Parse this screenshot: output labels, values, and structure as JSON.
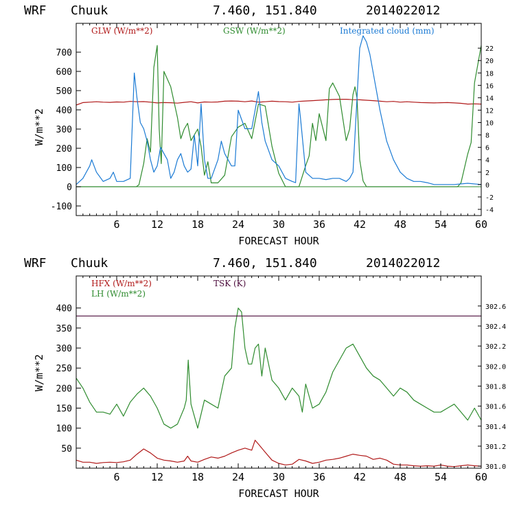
{
  "colors": {
    "red": "#b01818",
    "green": "#2e8b2e",
    "blue": "#1a7ad4",
    "purple": "#4a0a3a",
    "axis": "#000000"
  },
  "chart_data": [
    {
      "type": "line",
      "header": {
        "model": "WRF",
        "station": "Chuuk",
        "coords": "7.460, 151.840",
        "init": "2014022012"
      },
      "xlabel": "FORECAST HOUR",
      "ylabel": "W/m**2",
      "xlim": [
        0,
        60
      ],
      "ylim": [
        -150,
        850
      ],
      "y2lim": [
        -5,
        26
      ],
      "x_ticks": [
        "6",
        "12",
        "18",
        "24",
        "30",
        "36",
        "42",
        "48",
        "54",
        "60"
      ],
      "y_ticks": [
        "-100",
        "0",
        "100",
        "200",
        "300",
        "400",
        "500",
        "600",
        "700"
      ],
      "y2_ticks": [
        "-4",
        "-2",
        "0",
        "2",
        "4",
        "6",
        "8",
        "10",
        "12",
        "14",
        "16",
        "18",
        "20",
        "22"
      ],
      "grid": false,
      "legend": [
        {
          "label": "GLW (W/m**2)",
          "color": "#b01818"
        },
        {
          "label": "GSW (W/m**2)",
          "color": "#2e8b2e"
        },
        {
          "label": "Integrated cloud (mm)",
          "color": "#1a7ad4"
        }
      ],
      "series": [
        {
          "name": "GLW (W/m**2)",
          "axis": "left",
          "color": "#b01818",
          "x": [
            0,
            1,
            2,
            3,
            4,
            5,
            6,
            7,
            8,
            9,
            10,
            11,
            12,
            13,
            14,
            15,
            16,
            17,
            18,
            19,
            20,
            21,
            22,
            23,
            24,
            25,
            26,
            27,
            28,
            29,
            30,
            31,
            32,
            33,
            34,
            35,
            36,
            37,
            38,
            39,
            40,
            41,
            42,
            43,
            44,
            45,
            46,
            47,
            48,
            49,
            50,
            51,
            52,
            53,
            54,
            55,
            56,
            57,
            58,
            59,
            60
          ],
          "y": [
            425,
            438,
            440,
            442,
            440,
            439,
            441,
            440,
            444,
            442,
            443,
            440,
            436,
            438,
            437,
            435,
            439,
            442,
            436,
            441,
            440,
            441,
            445,
            446,
            445,
            442,
            446,
            440,
            442,
            445,
            443,
            442,
            440,
            444,
            446,
            448,
            450,
            452,
            454,
            455,
            455,
            453,
            452,
            450,
            448,
            445,
            442,
            444,
            440,
            442,
            440,
            438,
            437,
            436,
            437,
            438,
            436,
            434,
            430,
            431,
            430
          ]
        },
        {
          "name": "GSW (W/m**2)",
          "axis": "left",
          "color": "#2e8b2e",
          "x": [
            0,
            8.9,
            9.3,
            10,
            10.5,
            11,
            11.5,
            12,
            12.3,
            12.6,
            13,
            14,
            15,
            15.5,
            16,
            16.5,
            17,
            18,
            18.5,
            19,
            19.5,
            20,
            21,
            22,
            23,
            24,
            25,
            26,
            27,
            28,
            29,
            30,
            31,
            32,
            33,
            34,
            34.5,
            35,
            35.5,
            36,
            37,
            37.5,
            38,
            39,
            40,
            40.5,
            41,
            41.3,
            41.6,
            42,
            42.5,
            43,
            44,
            48,
            54,
            56.5,
            57,
            58,
            58.5,
            59,
            60
          ],
          "y": [
            0,
            0,
            10,
            120,
            250,
            180,
            620,
            735,
            300,
            120,
            600,
            520,
            360,
            250,
            300,
            330,
            240,
            300,
            210,
            60,
            130,
            20,
            20,
            60,
            260,
            310,
            330,
            250,
            430,
            420,
            210,
            70,
            0,
            0,
            0,
            110,
            160,
            330,
            240,
            380,
            240,
            510,
            540,
            470,
            240,
            300,
            480,
            520,
            460,
            140,
            30,
            0,
            0,
            0,
            0,
            0,
            20,
            170,
            230,
            540,
            735
          ]
        },
        {
          "name": "Integrated cloud (mm)",
          "axis": "right",
          "color": "#1a7ad4",
          "x": [
            0,
            1,
            2,
            2.3,
            3,
            4,
            5,
            5.5,
            6,
            7,
            8,
            8.6,
            9,
            9.5,
            10,
            10.5,
            11,
            11.5,
            12,
            12.5,
            13,
            13.5,
            14,
            14.5,
            15,
            15.5,
            16,
            16.5,
            17,
            17.5,
            18,
            18.5,
            19,
            19.5,
            20,
            21,
            21.5,
            22,
            23,
            23.5,
            24,
            25,
            26,
            26.5,
            27,
            27.5,
            28,
            29,
            30,
            31,
            32,
            32.5,
            33,
            33.2,
            34,
            35,
            36,
            37,
            38,
            39,
            40,
            40.5,
            41,
            42,
            42.5,
            43,
            43.5,
            44,
            45,
            46,
            47,
            48,
            49,
            50,
            51,
            52,
            53,
            54,
            56,
            58,
            60
          ],
          "y": [
            0,
            1,
            3,
            4,
            2,
            0.5,
            1,
            2,
            0.5,
            0.5,
            1,
            18,
            14,
            10,
            9,
            7,
            4,
            2,
            3,
            6,
            5,
            4,
            1,
            2,
            4,
            5,
            3,
            2,
            2.5,
            8,
            3,
            13,
            4,
            1,
            1,
            4,
            7,
            5,
            3,
            3,
            12,
            9,
            9,
            12,
            15,
            10,
            7,
            4,
            3,
            1,
            0.5,
            0.3,
            13,
            11,
            2,
            1,
            1,
            0.8,
            1,
            1,
            0.5,
            1,
            2,
            22,
            24,
            23,
            21,
            18,
            12,
            7,
            4,
            2,
            1,
            0.5,
            0.5,
            0.3,
            0,
            0,
            0,
            0.2,
            0
          ]
        }
      ]
    },
    {
      "type": "line",
      "header": {
        "model": "WRF",
        "station": "Chuuk",
        "coords": "7.460, 151.840",
        "init": "2014022012"
      },
      "xlabel": "FORECAST HOUR",
      "ylabel": "W/m**2",
      "xlim": [
        0,
        60
      ],
      "ylim": [
        0,
        480
      ],
      "y2lim": [
        300.98,
        302.9
      ],
      "x_ticks": [
        "6",
        "12",
        "18",
        "24",
        "30",
        "36",
        "42",
        "48",
        "54",
        "60"
      ],
      "y_ticks": [
        "50",
        "100",
        "150",
        "200",
        "250",
        "300",
        "350",
        "400"
      ],
      "y2_ticks": [
        "301.0",
        "301.2",
        "301.4",
        "301.6",
        "301.8",
        "302.0",
        "302.2",
        "302.4",
        "302.6"
      ],
      "grid": false,
      "legend": [
        {
          "label": "HFX (W/m**2)",
          "color": "#b01818"
        },
        {
          "label": "LH  (W/m**2)",
          "color": "#2e8b2e"
        },
        {
          "label": "TSK (K)",
          "color": "#4a0a3a"
        }
      ],
      "series": [
        {
          "name": "HFX (W/m**2)",
          "axis": "left",
          "color": "#b01818",
          "x": [
            0,
            1,
            2,
            3,
            4,
            5,
            6,
            7,
            8,
            9,
            10,
            11,
            12,
            13,
            14,
            15,
            16,
            16.5,
            17,
            18,
            19,
            20,
            21,
            22,
            23,
            24,
            25,
            26,
            26.5,
            27,
            28,
            29,
            30,
            31,
            32,
            33,
            34,
            35,
            36,
            37,
            38,
            39,
            40,
            41,
            42,
            43,
            44,
            45,
            46,
            47,
            48,
            49,
            50,
            51,
            52,
            53,
            54,
            55,
            56,
            57,
            58,
            59,
            60
          ],
          "y": [
            20,
            15,
            15,
            12,
            14,
            15,
            14,
            16,
            20,
            35,
            48,
            38,
            25,
            20,
            18,
            15,
            18,
            30,
            18,
            15,
            22,
            28,
            25,
            30,
            38,
            45,
            50,
            45,
            70,
            60,
            40,
            20,
            12,
            8,
            10,
            22,
            18,
            12,
            15,
            20,
            22,
            25,
            30,
            35,
            32,
            30,
            22,
            25,
            20,
            10,
            8,
            8,
            6,
            5,
            6,
            5,
            8,
            5,
            4,
            6,
            8,
            6,
            5
          ]
        },
        {
          "name": "LH  (W/m**2)",
          "axis": "left",
          "color": "#2e8b2e",
          "x": [
            0,
            1,
            2,
            3,
            4,
            5,
            6,
            7,
            8,
            9,
            10,
            11,
            12,
            13,
            14,
            15,
            16,
            16.3,
            16.6,
            17,
            18,
            19,
            20,
            21,
            22,
            23,
            23.5,
            24,
            24.5,
            25,
            25.5,
            26,
            26.5,
            27,
            27.5,
            28,
            29,
            30,
            31,
            32,
            33,
            33.5,
            34,
            35,
            36,
            37,
            38,
            39,
            40,
            41,
            42,
            43,
            44,
            45,
            46,
            47,
            48,
            49,
            50,
            51,
            52,
            53,
            54,
            55,
            56,
            57,
            58,
            59,
            60
          ],
          "y": [
            225,
            200,
            165,
            140,
            140,
            135,
            160,
            130,
            165,
            185,
            200,
            180,
            150,
            110,
            100,
            110,
            150,
            170,
            270,
            160,
            100,
            170,
            160,
            150,
            230,
            250,
            350,
            400,
            390,
            300,
            260,
            260,
            300,
            310,
            230,
            300,
            220,
            200,
            170,
            200,
            180,
            140,
            210,
            150,
            160,
            190,
            240,
            270,
            300,
            310,
            280,
            250,
            230,
            220,
            200,
            180,
            200,
            190,
            170,
            160,
            150,
            140,
            140,
            150,
            160,
            140,
            120,
            150,
            120
          ]
        },
        {
          "name": "TSK (K)",
          "axis": "right",
          "color": "#4a0a3a",
          "x": [
            0,
            60
          ],
          "y": [
            302.5,
            302.5
          ]
        }
      ]
    }
  ]
}
